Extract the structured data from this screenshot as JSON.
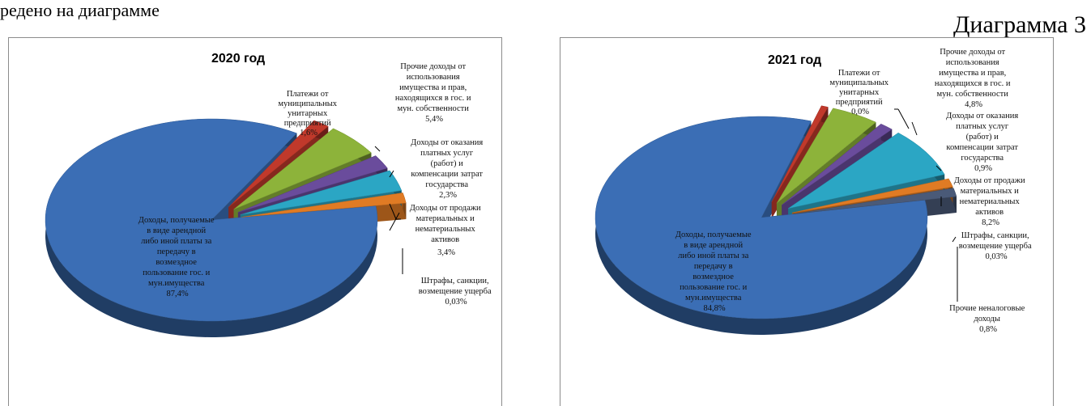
{
  "page": {
    "top_text": "редено на диаграмме",
    "diagram_label": "Диаграмма 3"
  },
  "chart_data": [
    {
      "type": "pie",
      "title": "2020 год",
      "slices": [
        {
          "name": "Доходы, получаемые в виде арендной либо иной платы за передачу в возмездное пользование гос. и мун.имущества",
          "value": 87.4,
          "label": "87,4%",
          "color": "#3b6eb5"
        },
        {
          "name": "Платежи от муниципальных унитарных предприятий",
          "value": 1.6,
          "label": "1,6%",
          "color": "#c0392b"
        },
        {
          "name": "Прочие доходы от использования имущества и прав, находящихся в гос. и мун. собственности",
          "value": 5.4,
          "label": "5,4%",
          "color": "#8db33a"
        },
        {
          "name": "Доходы от оказания платных услуг (работ) и компенсации затрат государства",
          "value": 2.3,
          "label": "2,3%",
          "color": "#6a4c9c"
        },
        {
          "name": "Доходы от продажи материальных и нематериальных активов",
          "value": 3.4,
          "label": "3,4%",
          "color": "#2ba6c4"
        },
        {
          "name": "Штрафы, санкции, возмещение ущерба",
          "value": 0.03,
          "label": "0,03%",
          "color": "#e07b24"
        }
      ]
    },
    {
      "type": "pie",
      "title": "2021 год",
      "slices": [
        {
          "name": "Доходы, получаемые в виде арендной либо иной платы за передачу в возмездное пользование гос. и мун.имущества",
          "value": 84.8,
          "label": "84,8%",
          "color": "#3b6eb5"
        },
        {
          "name": "Платежи от муниципальных унитарных предприятий",
          "value": 0.0,
          "label": "0,0%",
          "color": "#c0392b"
        },
        {
          "name": "Прочие доходы от использования имущества и прав, находящихся в гос. и мун. собственности",
          "value": 4.8,
          "label": "4,8%",
          "color": "#8db33a"
        },
        {
          "name": "Доходы от оказания платных услуг (работ) и компенсации затрат государства",
          "value": 0.9,
          "label": "0,9%",
          "color": "#6a4c9c"
        },
        {
          "name": "Доходы от продажи материальных и нематериальных активов",
          "value": 8.2,
          "label": "8,2%",
          "color": "#2ba6c4"
        },
        {
          "name": "Штрафы, санкции, возмещение ущерба",
          "value": 0.03,
          "label": "0,03%",
          "color": "#e07b24"
        },
        {
          "name": "Прочие неналоговые доходы",
          "value": 0.8,
          "label": "0,8%",
          "color": "#4a5a78"
        }
      ]
    }
  ]
}
